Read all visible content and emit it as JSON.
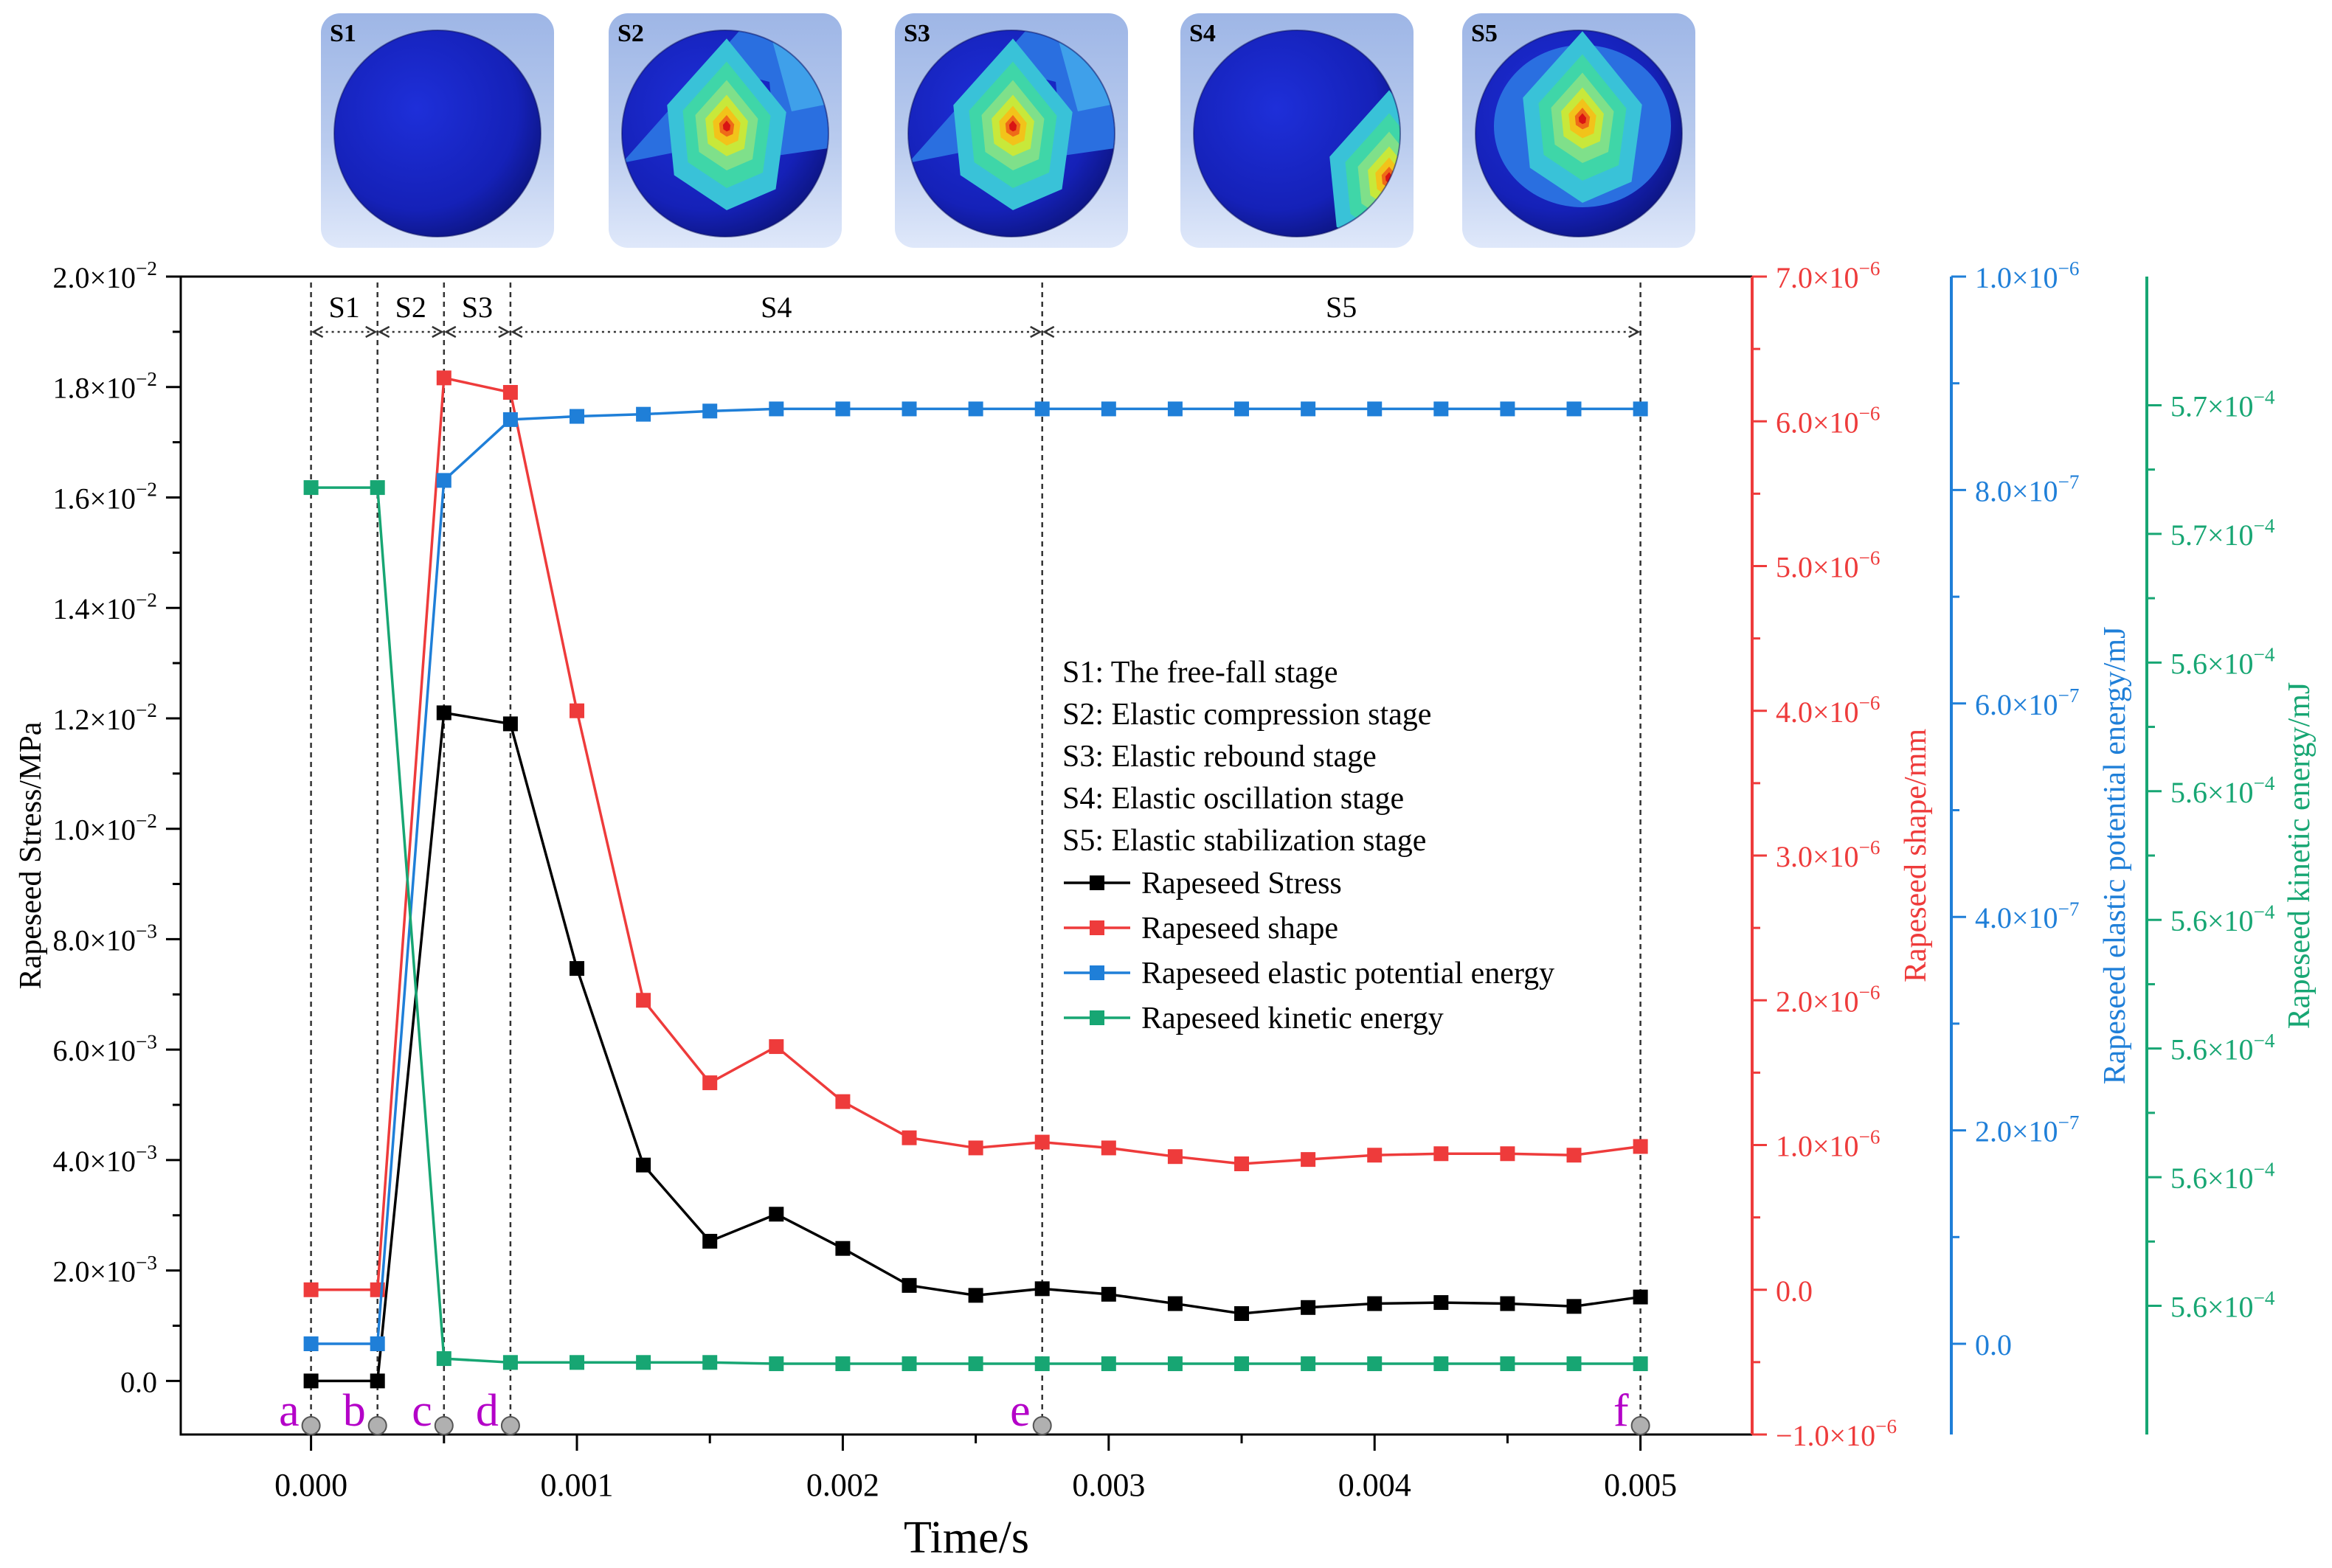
{
  "colors": {
    "stress": "#000000",
    "shape": "#ee3b3b",
    "elastic": "#1f7fd8",
    "kinetic": "#17a673",
    "marker_label": "#b400c8",
    "marker_dot": "#b0b0b0"
  },
  "thumbnails": [
    {
      "label": "S1",
      "hotspot": "none"
    },
    {
      "label": "S2",
      "hotspot": "center"
    },
    {
      "label": "S3",
      "hotspot": "center"
    },
    {
      "label": "S4",
      "hotspot": "edge"
    },
    {
      "label": "S5",
      "hotspot": "upper"
    }
  ],
  "chart_data": {
    "type": "line",
    "xlabel": "Time/s",
    "xlim": [
      -0.00049,
      0.00542
    ],
    "x_ticks": [
      0.0,
      0.001,
      0.002,
      0.003,
      0.004,
      0.005
    ],
    "x_tick_labels": [
      "0.000",
      "0.001",
      "0.002",
      "0.003",
      "0.004",
      "0.005"
    ],
    "x": [
      0,
      0.00025,
      0.0005,
      0.00075,
      0.001,
      0.00125,
      0.0015,
      0.00175,
      0.002,
      0.00225,
      0.0025,
      0.00275,
      0.003,
      0.00325,
      0.0035,
      0.00375,
      0.004,
      0.00425,
      0.0045,
      0.00475,
      0.005
    ],
    "axes": [
      {
        "id": "stress",
        "label": "Rapeseed Stress/MPa",
        "side": "left",
        "color": "#000000",
        "ylim": [
          -0.00097,
          0.02
        ],
        "ticks": [
          0,
          0.002,
          0.004,
          0.006,
          0.008,
          0.01,
          0.012,
          0.014,
          0.016,
          0.018,
          0.02
        ],
        "tick_labels": [
          {
            "m": "0.0",
            "e": ""
          },
          {
            "m": "2.0×10",
            "e": "−3"
          },
          {
            "m": "4.0×10",
            "e": "−3"
          },
          {
            "m": "6.0×10",
            "e": "−3"
          },
          {
            "m": "8.0×10",
            "e": "−3"
          },
          {
            "m": "1.0×10",
            "e": "−2"
          },
          {
            "m": "1.2×10",
            "e": "−2"
          },
          {
            "m": "1.4×10",
            "e": "−2"
          },
          {
            "m": "1.6×10",
            "e": "−2"
          },
          {
            "m": "1.8×10",
            "e": "−2"
          },
          {
            "m": "2.0×10",
            "e": "−2"
          }
        ]
      },
      {
        "id": "shape",
        "label": "Rapeseed shape/mm",
        "side": "right",
        "offset": 0,
        "color": "#ee3b3b",
        "ylim": [
          -1e-06,
          7e-06
        ],
        "ticks": [
          -1e-06,
          0,
          1e-06,
          2e-06,
          3e-06,
          4e-06,
          5e-06,
          6e-06,
          7e-06
        ],
        "tick_labels": [
          {
            "m": "−1.0×10",
            "e": "−6"
          },
          {
            "m": "0.0",
            "e": ""
          },
          {
            "m": "1.0×10",
            "e": "−6"
          },
          {
            "m": "2.0×10",
            "e": "−6"
          },
          {
            "m": "3.0×10",
            "e": "−6"
          },
          {
            "m": "4.0×10",
            "e": "−6"
          },
          {
            "m": "5.0×10",
            "e": "−6"
          },
          {
            "m": "6.0×10",
            "e": "−6"
          },
          {
            "m": "7.0×10",
            "e": "−6"
          }
        ]
      },
      {
        "id": "elastic",
        "label": "Rapeseed elastic potential energy/mJ",
        "side": "right",
        "offset": 1,
        "color": "#1f7fd8",
        "ylim": [
          -8.5e-08,
          1e-06
        ],
        "ticks": [
          0,
          2e-07,
          4e-07,
          6e-07,
          8e-07,
          1e-06
        ],
        "tick_labels": [
          {
            "m": "0.0",
            "e": ""
          },
          {
            "m": "2.0×10",
            "e": "−7"
          },
          {
            "m": "4.0×10",
            "e": "−7"
          },
          {
            "m": "6.0×10",
            "e": "−7"
          },
          {
            "m": "8.0×10",
            "e": "−7"
          },
          {
            "m": "1.0×10",
            "e": "−6"
          }
        ]
      },
      {
        "id": "kinetic",
        "label": "Rapeseed kinetic energy/mJ",
        "side": "right",
        "offset": 2,
        "color": "#17a673",
        "ylim": [
          0,
          9
        ],
        "ticks": [
          1,
          2,
          3,
          4,
          5,
          6,
          7,
          8
        ],
        "tick_labels": [
          {
            "m": "5.6×10",
            "e": "−4"
          },
          {
            "m": "5.6×10",
            "e": "−4"
          },
          {
            "m": "5.6×10",
            "e": "−4"
          },
          {
            "m": "5.6×10",
            "e": "−4"
          },
          {
            "m": "5.6×10",
            "e": "−4"
          },
          {
            "m": "5.6×10",
            "e": "−4"
          },
          {
            "m": "5.7×10",
            "e": "−4"
          },
          {
            "m": "5.7×10",
            "e": "−4"
          }
        ]
      }
    ],
    "series": [
      {
        "name": "Rapeseed Stress",
        "axis": "stress",
        "color": "#000000",
        "values": [
          0,
          0,
          0.0121,
          0.0119,
          0.00747,
          0.00391,
          0.00253,
          0.00302,
          0.0024,
          0.00173,
          0.00155,
          0.00167,
          0.00157,
          0.0014,
          0.00122,
          0.00133,
          0.0014,
          0.00142,
          0.0014,
          0.00135,
          0.00152
        ]
      },
      {
        "name": "Rapeseed shape",
        "axis": "shape",
        "color": "#ee3b3b",
        "values": [
          0.0,
          0.0,
          6.3e-06,
          6.2e-06,
          4e-06,
          2e-06,
          1.43e-06,
          1.68e-06,
          1.3e-06,
          1.05e-06,
          9.8e-07,
          1.02e-06,
          9.8e-07,
          9.2e-07,
          8.7e-07,
          9e-07,
          9.3e-07,
          9.4e-07,
          9.4e-07,
          9.3e-07,
          9.9e-07
        ]
      },
      {
        "name": "Rapeseed elastic potential energy",
        "axis": "elastic",
        "color": "#1f7fd8",
        "values": [
          0.0,
          0.0,
          8.09e-07,
          8.66e-07,
          8.69e-07,
          8.71e-07,
          8.74e-07,
          8.76e-07,
          8.76e-07,
          8.76e-07,
          8.76e-07,
          8.76e-07,
          8.76e-07,
          8.76e-07,
          8.76e-07,
          8.76e-07,
          8.76e-07,
          8.76e-07,
          8.76e-07,
          8.76e-07,
          8.76e-07
        ]
      },
      {
        "name": "Rapeseed kinetic energy",
        "axis": "kinetic",
        "color": "#17a673",
        "values": [
          7.36,
          7.36,
          0.59,
          0.56,
          0.56,
          0.56,
          0.56,
          0.55,
          0.55,
          0.55,
          0.55,
          0.55,
          0.55,
          0.55,
          0.55,
          0.55,
          0.55,
          0.55,
          0.55,
          0.55,
          0.55
        ]
      }
    ],
    "stages": [
      {
        "label": "S1",
        "x0": 0,
        "x1": 0.00025
      },
      {
        "label": "S2",
        "x0": 0.00025,
        "x1": 0.0005
      },
      {
        "label": "S3",
        "x0": 0.0005,
        "x1": 0.00075
      },
      {
        "label": "S4",
        "x0": 0.00075,
        "x1": 0.00275
      },
      {
        "label": "S5",
        "x0": 0.00275,
        "x1": 0.005
      }
    ],
    "point_markers": [
      {
        "label": "a",
        "x": 0
      },
      {
        "label": "b",
        "x": 0.00025
      },
      {
        "label": "c",
        "x": 0.0005
      },
      {
        "label": "d",
        "x": 0.00075
      },
      {
        "label": "e",
        "x": 0.00275
      },
      {
        "label": "f",
        "x": 0.005
      }
    ],
    "stage_notes": [
      "S1: The free-fall stage",
      "S2: Elastic compression stage",
      "S3: Elastic rebound stage",
      "S4: Elastic oscillation stage",
      "S5: Elastic stabilization stage"
    ],
    "legend_position": "center-right"
  }
}
